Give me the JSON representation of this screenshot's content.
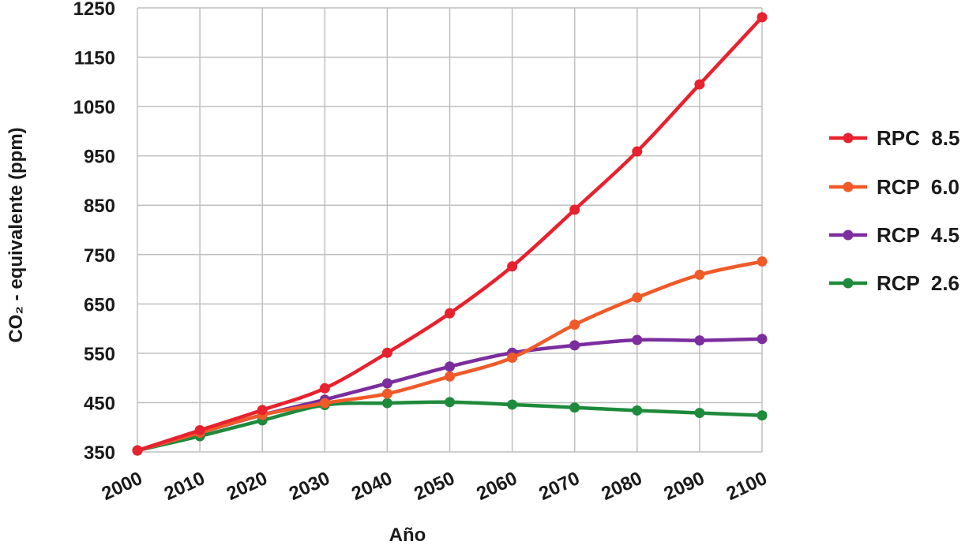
{
  "chart_data": {
    "type": "line",
    "xlabel": "Año",
    "ylabel": "CO₂ - equivalente (ppm)",
    "x": [
      2000,
      2010,
      2020,
      2030,
      2040,
      2050,
      2060,
      2070,
      2080,
      2090,
      2100
    ],
    "xlim": [
      2000,
      2100
    ],
    "ylim": [
      350,
      1250
    ],
    "yticks": [
      350,
      450,
      550,
      650,
      750,
      850,
      950,
      1050,
      1150,
      1250
    ],
    "grid": true,
    "legend_position": "right",
    "series": [
      {
        "name": "RPC  8.5",
        "color": "#e8212e",
        "values": [
          353,
          394,
          435,
          479,
          551,
          631,
          726,
          841,
          959,
          1095,
          1231
        ]
      },
      {
        "name": "RCP  6.0",
        "color": "#f05a28",
        "values": [
          353,
          389,
          425,
          449,
          468,
          503,
          541,
          608,
          663,
          709,
          736
        ]
      },
      {
        "name": "RCP  4.5",
        "color": "#7b2d9e",
        "values": [
          353,
          389,
          425,
          456,
          489,
          523,
          551,
          566,
          577,
          576,
          579
        ]
      },
      {
        "name": "RCP  2.6",
        "color": "#1e8a3c",
        "values": [
          353,
          382,
          414,
          445,
          449,
          451,
          446,
          440,
          434,
          429,
          424
        ]
      }
    ]
  }
}
